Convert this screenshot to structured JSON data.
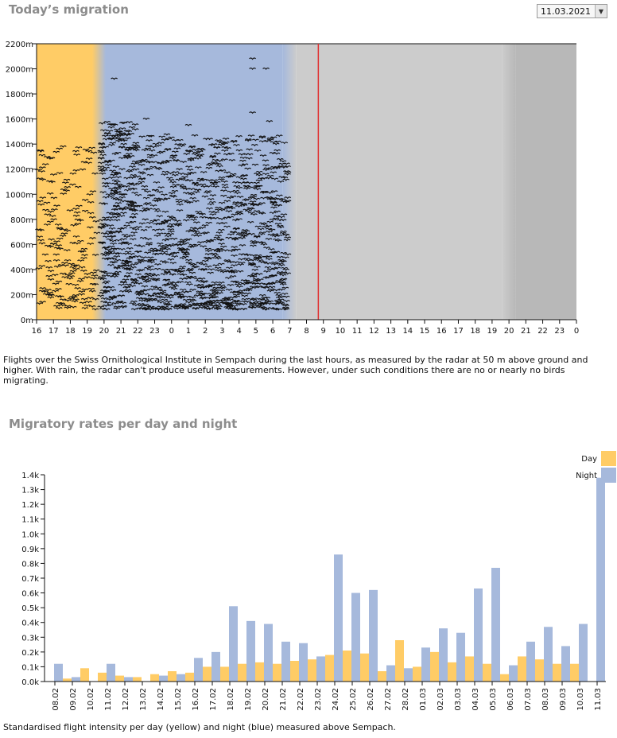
{
  "header": {
    "title": "Today’s migration",
    "date_value": "11.03.2021"
  },
  "migration_caption": "Flights over the Swiss Ornithological Institute in Sempach during the last hours, as measured by the radar at 50 m above ground and higher. With rain, the radar can't produce useful measurements. However, under such conditions there are no or nearly no birds migrating.",
  "rates_title": "Migratory rates per day and night",
  "rates_caption": "Standardised flight intensity per day (yellow) and night (blue) measured above Sempach.",
  "colors": {
    "day": "#ffcc66",
    "night": "#a6b9dc",
    "grey_light": "#cccccc",
    "grey_dark": "#b8b8b8",
    "now_line": "#e03030"
  },
  "chart_data": [
    {
      "type": "scatter",
      "title": "Today’s migration",
      "x_ticks": [
        "16",
        "17",
        "18",
        "19",
        "20",
        "21",
        "22",
        "23",
        "0",
        "1",
        "2",
        "3",
        "4",
        "5",
        "6",
        "7",
        "8",
        "9",
        "10",
        "11",
        "12",
        "13",
        "14",
        "15",
        "16",
        "17",
        "18",
        "19",
        "20",
        "21",
        "22",
        "23",
        "0"
      ],
      "y_ticks": [
        "0m",
        "200m",
        "400m",
        "600m",
        "800m",
        "1000m",
        "1200m",
        "1400m",
        "1600m",
        "1800m",
        "2000m",
        "2200m"
      ],
      "ylim": [
        0,
        2200
      ],
      "x_range_hours": [
        0,
        32
      ],
      "day_period_hours": [
        0,
        3.7
      ],
      "night_period_hours": [
        3.7,
        15
      ],
      "grey_period_hours": [
        15,
        28
      ],
      "dark_grey_period_hours": [
        28,
        32
      ],
      "current_time_hours": 16.7,
      "marker": "bird",
      "description": "Dense cloud of individual bird flights, mostly during night hours below 1400 m"
    },
    {
      "type": "bar",
      "title": "Migratory rates per day and night",
      "categories": [
        "08.02",
        "09.02",
        "10.02",
        "11.02",
        "12.02",
        "13.02",
        "14.02",
        "15.02",
        "16.02",
        "17.02",
        "18.02",
        "19.02",
        "20.02",
        "21.02",
        "22.02",
        "23.02",
        "24.02",
        "25.02",
        "26.02",
        "27.02",
        "28.02",
        "01.03",
        "02.03",
        "03.03",
        "04.03",
        "05.03",
        "06.03",
        "07.03",
        "08.03",
        "09.03",
        "10.03",
        "11.03"
      ],
      "series": [
        {
          "name": "Day",
          "values": [
            0,
            0.02,
            0.09,
            0.06,
            0.04,
            0.03,
            0.05,
            0.07,
            0.06,
            0.1,
            0.1,
            0.12,
            0.13,
            0.12,
            0.14,
            0.15,
            0.18,
            0.21,
            0.19,
            0.07,
            0.28,
            0.1,
            0.2,
            0.13,
            0.17,
            0.12,
            0.05,
            0.17,
            0.15,
            0.12,
            0.12,
            0
          ]
        },
        {
          "name": "Night",
          "values": [
            0.12,
            0.03,
            0,
            0.12,
            0.03,
            0,
            0.04,
            0.05,
            0.16,
            0.2,
            0.51,
            0.41,
            0.39,
            0.27,
            0.26,
            0.17,
            0.86,
            0.6,
            0.62,
            0.11,
            0.09,
            0.23,
            0.36,
            0.33,
            0.63,
            0.77,
            0.11,
            0.27,
            0.37,
            0.24,
            0.39,
            1.38
          ]
        }
      ],
      "y_ticks": [
        "0.0k",
        "0.1k",
        "0.2k",
        "0.3k",
        "0.4k",
        "0.5k",
        "0.6k",
        "0.7k",
        "0.8k",
        "0.9k",
        "1.0k",
        "1.1k",
        "1.2k",
        "1.3k",
        "1.4k"
      ],
      "ylim": [
        0,
        1.4
      ],
      "ylabel": "",
      "xlabel": "",
      "legend": {
        "position": "top-right",
        "labels": [
          "Day",
          "Night"
        ]
      }
    }
  ]
}
